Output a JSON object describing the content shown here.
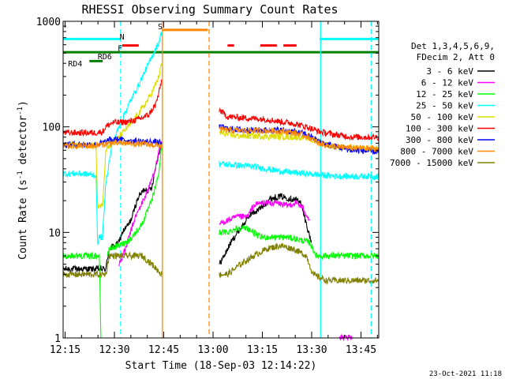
{
  "chart_data": {
    "type": "line",
    "title": "RHESSI Observing Summary Count Rates",
    "xlabel": "Start Time (18-Sep-03 12:14:22)",
    "ylabel": "Count Rate (s⁻¹ detector⁻¹)",
    "ylabel_main": "Count Rate (s",
    "ylabel_sup1": "-1",
    "ylabel_mid": " detector",
    "ylabel_sup2": "-1",
    "ylabel_end": ")",
    "y_scale": "log",
    "ylim": [
      1,
      1000
    ],
    "y_ticks": [
      {
        "value": 1,
        "label": "1"
      },
      {
        "value": 10,
        "label": "10"
      },
      {
        "value": 100,
        "label": "100"
      },
      {
        "value": 1000,
        "label": "1000"
      }
    ],
    "xlim_minutes": [
      0,
      96
    ],
    "x_ticks": [
      {
        "minute": 0.6,
        "label": "12:15"
      },
      {
        "minute": 15.6,
        "label": "12:30"
      },
      {
        "minute": 30.6,
        "label": "12:45"
      },
      {
        "minute": 45.6,
        "label": "13:00"
      },
      {
        "minute": 60.6,
        "label": "13:15"
      },
      {
        "minute": 75.6,
        "label": "13:30"
      },
      {
        "minute": 90.6,
        "label": "13:45"
      }
    ],
    "legend_header": [
      "Det 1,3,4,5,6,9,",
      "FDecim 2, Att 0"
    ],
    "series": [
      {
        "name": "3 - 6 keV",
        "color": "#000000",
        "points": [
          [
            0,
            4.5
          ],
          [
            10,
            4.5
          ],
          [
            13,
            4.5
          ],
          [
            14,
            7
          ],
          [
            17,
            8
          ],
          [
            18,
            10
          ],
          [
            20,
            12
          ],
          [
            21,
            14
          ],
          [
            22,
            18
          ],
          [
            23,
            22
          ],
          [
            25,
            26
          ],
          [
            26,
            25
          ],
          [
            27,
            27
          ],
          [
            28,
            40
          ],
          [
            29,
            55
          ],
          [
            30,
            70
          ],
          [
            31,
            null
          ],
          [
            47,
            null
          ],
          [
            47.5,
            5
          ],
          [
            49,
            6
          ],
          [
            51,
            8
          ],
          [
            53,
            10
          ],
          [
            55,
            12
          ],
          [
            57,
            15
          ],
          [
            59,
            16
          ],
          [
            61,
            18
          ],
          [
            63,
            21
          ],
          [
            66,
            22
          ],
          [
            69,
            21
          ],
          [
            72,
            20
          ],
          [
            74,
            12
          ],
          [
            75.5,
            8
          ],
          [
            76,
            null
          ]
        ]
      },
      {
        "name": "6 - 12 keV",
        "color": "#ff00ff",
        "points": [
          [
            17,
            5
          ],
          [
            19,
            7
          ],
          [
            20,
            9
          ],
          [
            22,
            14
          ],
          [
            24,
            19
          ],
          [
            26,
            26
          ],
          [
            28,
            40
          ],
          [
            29,
            55
          ],
          [
            30,
            72
          ],
          [
            31,
            null
          ],
          [
            47,
            null
          ],
          [
            47.5,
            12
          ],
          [
            50,
            13
          ],
          [
            53,
            14
          ],
          [
            56,
            14
          ],
          [
            58,
            18
          ],
          [
            60,
            19
          ],
          [
            62,
            19
          ],
          [
            65,
            19
          ],
          [
            68,
            18
          ],
          [
            71,
            19
          ],
          [
            73,
            17
          ],
          [
            75,
            13
          ],
          [
            76,
            null
          ],
          [
            83,
            null
          ],
          [
            84,
            1
          ],
          [
            88,
            1
          ]
        ]
      },
      {
        "name": "12 - 25 keV",
        "color": "#00ff00",
        "points": [
          [
            0,
            6
          ],
          [
            10,
            6
          ],
          [
            11,
            6
          ],
          [
            11.5,
            1
          ],
          [
            12,
            null
          ],
          [
            13,
            null
          ],
          [
            13.5,
            6
          ],
          [
            14,
            7
          ],
          [
            17,
            7.5
          ],
          [
            19,
            8
          ],
          [
            21,
            9
          ],
          [
            24,
            12
          ],
          [
            27,
            20
          ],
          [
            29,
            35
          ],
          [
            30,
            65
          ],
          [
            31,
            null
          ],
          [
            47,
            null
          ],
          [
            47.5,
            10
          ],
          [
            50,
            10
          ],
          [
            53,
            11
          ],
          [
            56,
            11
          ],
          [
            60,
            9
          ],
          [
            64,
            9
          ],
          [
            68,
            9
          ],
          [
            72,
            8.5
          ],
          [
            75,
            8
          ],
          [
            77,
            6
          ],
          [
            80,
            6
          ],
          [
            85,
            6
          ],
          [
            90,
            6
          ],
          [
            96,
            6
          ]
        ]
      },
      {
        "name": "25 - 50 keV",
        "color": "#00ffff",
        "points": [
          [
            0,
            36
          ],
          [
            5,
            36
          ],
          [
            9,
            35
          ],
          [
            10,
            35
          ],
          [
            10.5,
            8
          ],
          [
            11,
            9
          ],
          [
            12,
            9
          ],
          [
            13,
            30
          ],
          [
            15,
            70
          ],
          [
            17,
            100
          ],
          [
            19,
            140
          ],
          [
            21,
            190
          ],
          [
            23,
            250
          ],
          [
            25,
            340
          ],
          [
            27,
            460
          ],
          [
            29,
            620
          ],
          [
            30,
            800
          ],
          [
            31,
            null
          ],
          [
            47,
            null
          ],
          [
            47.5,
            45
          ],
          [
            50,
            44
          ],
          [
            54,
            43
          ],
          [
            58,
            42
          ],
          [
            62,
            40
          ],
          [
            66,
            38
          ],
          [
            70,
            37
          ],
          [
            74,
            36
          ],
          [
            78,
            35
          ],
          [
            84,
            34
          ],
          [
            90,
            34
          ],
          [
            96,
            34
          ]
        ]
      },
      {
        "name": "50 - 100 keV",
        "color": "#dddd00",
        "points": [
          [
            0,
            68
          ],
          [
            5,
            67
          ],
          [
            10,
            67
          ],
          [
            10.5,
            18
          ],
          [
            11,
            18
          ],
          [
            12,
            18
          ],
          [
            13,
            62
          ],
          [
            15,
            70
          ],
          [
            17,
            80
          ],
          [
            19,
            95
          ],
          [
            21,
            110
          ],
          [
            23,
            135
          ],
          [
            25,
            165
          ],
          [
            27,
            210
          ],
          [
            29,
            290
          ],
          [
            30,
            400
          ],
          [
            31,
            null
          ],
          [
            47,
            null
          ],
          [
            47.5,
            88
          ],
          [
            50,
            85
          ],
          [
            54,
            82
          ],
          [
            58,
            82
          ],
          [
            62,
            81
          ],
          [
            66,
            81
          ],
          [
            70,
            80
          ],
          [
            74,
            79
          ],
          [
            78,
            70
          ],
          [
            84,
            64
          ],
          [
            90,
            62
          ],
          [
            96,
            62
          ]
        ]
      },
      {
        "name": "100 - 300 keV",
        "color": "#ff0000",
        "points": [
          [
            0,
            88
          ],
          [
            5,
            88
          ],
          [
            10,
            88
          ],
          [
            12,
            90
          ],
          [
            13,
            100
          ],
          [
            15,
            110
          ],
          [
            17,
            110
          ],
          [
            20,
            112
          ],
          [
            23,
            118
          ],
          [
            26,
            130
          ],
          [
            28,
            160
          ],
          [
            29,
            200
          ],
          [
            30,
            280
          ],
          [
            31,
            null
          ],
          [
            47,
            null
          ],
          [
            47.5,
            145
          ],
          [
            50,
            125
          ],
          [
            54,
            122
          ],
          [
            58,
            120
          ],
          [
            62,
            118
          ],
          [
            66,
            112
          ],
          [
            70,
            108
          ],
          [
            74,
            100
          ],
          [
            78,
            90
          ],
          [
            82,
            85
          ],
          [
            88,
            80
          ],
          [
            96,
            80
          ]
        ]
      },
      {
        "name": "300 - 800 keV",
        "color": "#0000ff",
        "points": [
          [
            0,
            68
          ],
          [
            5,
            68
          ],
          [
            10,
            68
          ],
          [
            12,
            70
          ],
          [
            14,
            75
          ],
          [
            17,
            76
          ],
          [
            20,
            74
          ],
          [
            23,
            73
          ],
          [
            26,
            72
          ],
          [
            28,
            72
          ],
          [
            30,
            70
          ],
          [
            31,
            null
          ],
          [
            47,
            null
          ],
          [
            47.5,
            100
          ],
          [
            50,
            96
          ],
          [
            54,
            94
          ],
          [
            58,
            93
          ],
          [
            62,
            93
          ],
          [
            66,
            93
          ],
          [
            70,
            90
          ],
          [
            74,
            85
          ],
          [
            78,
            72
          ],
          [
            82,
            66
          ],
          [
            88,
            60
          ],
          [
            96,
            58
          ]
        ]
      },
      {
        "name": "800 - 7000 keV",
        "color": "#ff8800",
        "points": [
          [
            0,
            66
          ],
          [
            5,
            66
          ],
          [
            10,
            66
          ],
          [
            12,
            68
          ],
          [
            14,
            70
          ],
          [
            17,
            70
          ],
          [
            20,
            70
          ],
          [
            23,
            69
          ],
          [
            26,
            68
          ],
          [
            28,
            67
          ],
          [
            30,
            66
          ],
          [
            31,
            null
          ],
          [
            47,
            null
          ],
          [
            47.5,
            95
          ],
          [
            50,
            93
          ],
          [
            54,
            92
          ],
          [
            58,
            92
          ],
          [
            62,
            92
          ],
          [
            66,
            91
          ],
          [
            70,
            88
          ],
          [
            74,
            82
          ],
          [
            78,
            70
          ],
          [
            82,
            65
          ],
          [
            88,
            63
          ],
          [
            96,
            62
          ]
        ]
      },
      {
        "name": "7000 - 15000 keV",
        "color": "#808000",
        "points": [
          [
            0,
            4
          ],
          [
            5,
            4
          ],
          [
            10,
            4
          ],
          [
            13,
            4
          ],
          [
            14,
            6
          ],
          [
            17,
            6
          ],
          [
            20,
            6
          ],
          [
            24,
            6
          ],
          [
            27,
            5
          ],
          [
            30,
            4
          ],
          [
            31,
            null
          ],
          [
            47,
            null
          ],
          [
            47.5,
            4
          ],
          [
            50,
            4
          ],
          [
            54,
            5
          ],
          [
            58,
            6
          ],
          [
            62,
            7
          ],
          [
            66,
            7.5
          ],
          [
            70,
            7
          ],
          [
            74,
            6
          ],
          [
            76,
            4
          ],
          [
            80,
            3.5
          ],
          [
            85,
            3.5
          ],
          [
            90,
            3.5
          ],
          [
            96,
            3.5
          ]
        ]
      }
    ],
    "annotations": [
      {
        "label": "N",
        "minute": 17.2,
        "color": "#00ffff"
      },
      {
        "label": "F",
        "minute": 16.6,
        "color": "#ff0000"
      },
      {
        "label": "S",
        "minute": 28.8,
        "color": "#ff8800"
      },
      {
        "label": "RD6",
        "minute": 10.5,
        "color": "#008000"
      },
      {
        "label": "RD4",
        "minute": 1.5,
        "color": "#008000"
      }
    ],
    "status_bars": [
      {
        "color": "#00ffff",
        "y_value": 680,
        "start": 0,
        "end": 17.5
      },
      {
        "color": "#00ffff",
        "y_value": 680,
        "start": 78,
        "end": 96
      },
      {
        "color": "#008000",
        "y_value": 510,
        "start": 0,
        "end": 96
      },
      {
        "color": "#008000",
        "y_value": 420,
        "start": 8,
        "end": 12
      },
      {
        "color": "#ff0000",
        "y_value": 590,
        "start": 18,
        "end": 23
      },
      {
        "color": "#ff0000",
        "y_value": 590,
        "start": 50,
        "end": 52
      },
      {
        "color": "#ff0000",
        "y_value": 590,
        "start": 60,
        "end": 65
      },
      {
        "color": "#ff0000",
        "y_value": 590,
        "start": 67,
        "end": 71
      },
      {
        "color": "#ff8800",
        "y_value": 830,
        "start": 30.2,
        "end": 44
      }
    ],
    "vertical_lines": [
      {
        "minute": 17.5,
        "color": "#00ffff",
        "dashed": true
      },
      {
        "minute": 30.2,
        "color": "#ff8800",
        "dashed": false
      },
      {
        "minute": 44.4,
        "color": "#ff8800",
        "dashed": true
      },
      {
        "minute": 78.3,
        "color": "#00ffff",
        "dashed": false
      },
      {
        "minute": 93.7,
        "color": "#00ffff",
        "dashed": true
      }
    ],
    "datestamp": "23-Oct-2021 11:18"
  }
}
